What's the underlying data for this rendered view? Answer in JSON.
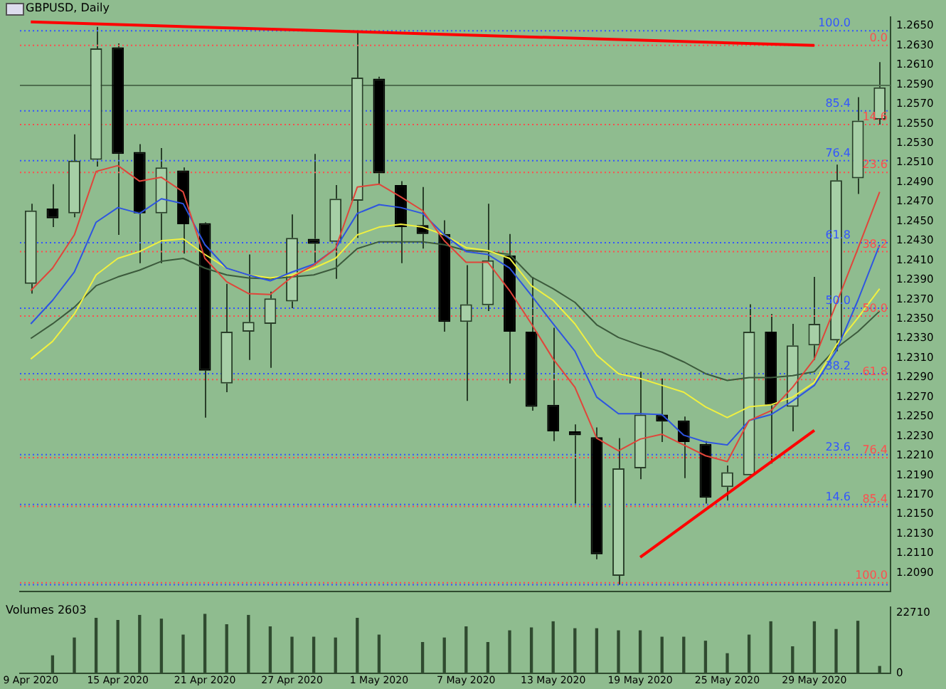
{
  "chart_data": [
    {
      "type": "candlestick",
      "title": "GBPUSD, Daily",
      "tick_labels": "y",
      "categories": [
        "9 Apr 2020",
        null,
        null,
        null,
        "15 Apr 2020",
        null,
        null,
        null,
        "21 Apr 2020",
        null,
        null,
        null,
        "27 Apr 2020",
        null,
        null,
        null,
        "1 May 2020",
        null,
        null,
        null,
        "7 May 2020",
        null,
        null,
        null,
        "13 May 2020",
        null,
        null,
        null,
        "19 May 2020",
        null,
        null,
        null,
        "25 May 2020",
        null,
        null,
        null,
        "29 May 2020",
        null,
        null,
        null
      ],
      "ohlc": [
        [
          1.2386,
          1.2468,
          1.2376,
          1.2461
        ],
        [
          1.2463,
          1.2488,
          1.2444,
          1.2453
        ],
        [
          1.2458,
          1.2539,
          1.2454,
          1.2512
        ],
        [
          1.2513,
          1.2649,
          1.2506,
          1.2627
        ],
        [
          1.2628,
          1.2632,
          1.2436,
          1.2519
        ],
        [
          1.2521,
          1.2529,
          1.2407,
          1.2458
        ],
        [
          1.2458,
          1.2525,
          1.2407,
          1.2505
        ],
        [
          1.2502,
          1.2505,
          1.2417,
          1.2447
        ],
        [
          1.2448,
          1.2449,
          1.2249,
          1.2297
        ],
        [
          1.2284,
          1.2386,
          1.2275,
          1.2337
        ],
        [
          1.2337,
          1.2416,
          1.2308,
          1.2347
        ],
        [
          1.2345,
          1.2378,
          1.23,
          1.2371
        ],
        [
          1.2368,
          1.2457,
          1.2361,
          1.2433
        ],
        [
          1.2432,
          1.2519,
          1.2405,
          1.2427
        ],
        [
          1.2429,
          1.2487,
          1.2391,
          1.2473
        ],
        [
          1.2471,
          1.2645,
          1.2433,
          1.2597
        ],
        [
          1.2596,
          1.2598,
          1.2487,
          1.2499
        ],
        [
          1.2487,
          1.2491,
          1.2407,
          1.2444
        ],
        [
          1.2446,
          1.2485,
          1.2422,
          1.2437
        ],
        [
          1.2437,
          1.2451,
          1.2337,
          1.2347
        ],
        [
          1.2347,
          1.2405,
          1.2266,
          1.2365
        ],
        [
          1.2364,
          1.2468,
          1.2358,
          1.241
        ],
        [
          1.2415,
          1.2437,
          1.2284,
          1.2337
        ],
        [
          1.2337,
          1.2393,
          1.2256,
          1.226
        ],
        [
          1.2262,
          1.2341,
          1.2225,
          1.2235
        ],
        [
          1.2235,
          1.2242,
          1.2161,
          1.2231
        ],
        [
          1.2229,
          1.2239,
          1.2104,
          1.2109
        ],
        [
          1.2087,
          1.2228,
          1.2078,
          1.2197
        ],
        [
          1.2197,
          1.2296,
          1.2186,
          1.2252
        ],
        [
          1.2252,
          1.2289,
          1.2224,
          1.2245
        ],
        [
          1.2246,
          1.225,
          1.2187,
          1.2224
        ],
        [
          1.2222,
          1.2225,
          1.2161,
          1.2167
        ],
        [
          1.2178,
          1.22,
          1.2164,
          1.2193
        ],
        [
          1.219,
          1.2365,
          1.2188,
          1.2337
        ],
        [
          1.2337,
          1.2355,
          1.2202,
          1.2262
        ],
        [
          1.226,
          1.2345,
          1.2235,
          1.2323
        ],
        [
          1.2323,
          1.2393,
          1.2308,
          1.2345
        ],
        [
          1.2328,
          1.2508,
          1.2317,
          1.2492
        ],
        [
          1.2494,
          1.2577,
          1.2478,
          1.2553
        ],
        [
          1.2554,
          1.2613,
          1.2549,
          1.2587
        ]
      ],
      "series": [
        {
          "type": "line",
          "color": "#e0453a",
          "values": [
            1.2379,
            1.2402,
            1.2436,
            1.2501,
            1.2507,
            1.2491,
            1.2495,
            1.248,
            1.2412,
            1.2388,
            1.2376,
            1.2375,
            1.2393,
            1.2405,
            1.2422,
            1.2485,
            1.2488,
            1.2475,
            1.2461,
            1.243,
            1.2408,
            1.2408,
            1.2379,
            1.2345,
            1.2309,
            1.228,
            1.2228,
            1.2215,
            1.2227,
            1.2232,
            1.2221,
            1.221,
            1.2204,
            1.2246,
            1.2256,
            1.228,
            1.2309,
            1.2365,
            1.2422,
            1.248
          ]
        },
        {
          "type": "line",
          "color": "#2e55e0",
          "values": [
            1.2345,
            1.2369,
            1.2398,
            1.2449,
            1.2464,
            1.2458,
            1.2473,
            1.2468,
            1.2426,
            1.2402,
            1.2395,
            1.2389,
            1.2398,
            1.2406,
            1.2422,
            1.2458,
            1.2467,
            1.2464,
            1.2458,
            1.2436,
            1.2419,
            1.2416,
            1.2402,
            1.2374,
            1.2345,
            1.2317,
            1.227,
            1.2253,
            1.2253,
            1.2252,
            1.2231,
            1.2224,
            1.2221,
            1.2246,
            1.2252,
            1.2266,
            1.2282,
            1.2317,
            1.2369,
            1.2426
          ]
        },
        {
          "type": "line",
          "color": "#f0f040",
          "values": [
            1.2309,
            1.2327,
            1.2355,
            1.2395,
            1.2412,
            1.2419,
            1.243,
            1.2432,
            1.2416,
            1.2402,
            1.2395,
            1.2392,
            1.2395,
            1.2402,
            1.2412,
            1.2436,
            1.2444,
            1.2447,
            1.2444,
            1.2436,
            1.2423,
            1.242,
            1.2412,
            1.2384,
            1.2369,
            1.2345,
            1.2313,
            1.2294,
            1.2289,
            1.2282,
            1.2275,
            1.226,
            1.2249,
            1.226,
            1.2262,
            1.227,
            1.2285,
            1.2323,
            1.2351,
            1.2381
          ]
        },
        {
          "type": "line",
          "color": "#3c5a3c",
          "values": [
            1.233,
            1.2345,
            1.2362,
            1.2384,
            1.2393,
            1.24,
            1.2409,
            1.2412,
            1.2402,
            1.2395,
            1.2392,
            1.2391,
            1.2393,
            1.2395,
            1.2402,
            1.2422,
            1.2429,
            1.2429,
            1.2429,
            1.2426,
            1.242,
            1.2419,
            1.2416,
            1.2393,
            1.2381,
            1.2367,
            1.2344,
            1.2331,
            1.2323,
            1.2316,
            1.2306,
            1.2294,
            1.2287,
            1.229,
            1.229,
            1.2292,
            1.2296,
            1.232,
            1.2337,
            1.2358
          ]
        },
        {
          "type": "line",
          "color": "#ff0000",
          "x": [
            "9 Apr 2020",
            "29 May 2020"
          ],
          "values": [
            1.2654,
            1.263
          ]
        },
        {
          "type": "line",
          "color": "#ff0000",
          "x": [
            "19 May 2020",
            "29 May 2020"
          ],
          "values": [
            1.2106,
            1.2236
          ]
        }
      ],
      "ylim": [
        1.2071,
        1.2659
      ],
      "yticks": [
        {
          "value": 1.265,
          "label": "1.2650"
        },
        {
          "value": 1.263,
          "label": "1.2630"
        },
        {
          "value": 1.261,
          "label": "1.2610"
        },
        {
          "value": 1.259,
          "label": "1.2590"
        },
        {
          "value": 1.257,
          "label": "1.2570"
        },
        {
          "value": 1.255,
          "label": "1.2550"
        },
        {
          "value": 1.253,
          "label": "1.2530"
        },
        {
          "value": 1.251,
          "label": "1.2510"
        },
        {
          "value": 1.249,
          "label": "1.2490"
        },
        {
          "value": 1.247,
          "label": "1.2470"
        },
        {
          "value": 1.245,
          "label": "1.2450"
        },
        {
          "value": 1.243,
          "label": "1.2430"
        },
        {
          "value": 1.241,
          "label": "1.2410"
        },
        {
          "value": 1.239,
          "label": "1.2390"
        },
        {
          "value": 1.237,
          "label": "1.2370"
        },
        {
          "value": 1.235,
          "label": "1.2350"
        },
        {
          "value": 1.233,
          "label": "1.2330"
        },
        {
          "value": 1.231,
          "label": "1.2310"
        },
        {
          "value": 1.229,
          "label": "1.2290"
        },
        {
          "value": 1.227,
          "label": "1.2270"
        },
        {
          "value": 1.225,
          "label": "1.2250"
        },
        {
          "value": 1.223,
          "label": "1.2230"
        },
        {
          "value": 1.221,
          "label": "1.2210"
        },
        {
          "value": 1.219,
          "label": "1.2190"
        },
        {
          "value": 1.217,
          "label": "1.2170"
        },
        {
          "value": 1.215,
          "label": "1.2150"
        },
        {
          "value": 1.213,
          "label": "1.2130"
        },
        {
          "value": 1.211,
          "label": "1.2110"
        },
        {
          "value": 1.209,
          "label": "1.2090"
        }
      ],
      "ref_lines": [
        {
          "axis": "y",
          "value": 1.2589,
          "color": "#4f6f4f",
          "line_style": "solid"
        },
        {
          "axis": "y",
          "value": 1.2645,
          "color": "#3355ff",
          "line_style": "dotted"
        },
        {
          "axis": "y",
          "value": 1.2563,
          "color": "#3355ff",
          "line_style": "dotted"
        },
        {
          "axis": "y",
          "value": 1.2512,
          "color": "#3355ff",
          "line_style": "dotted"
        },
        {
          "axis": "y",
          "value": 1.2428,
          "color": "#3355ff",
          "line_style": "dotted"
        },
        {
          "axis": "y",
          "value": 1.2361,
          "color": "#3355ff",
          "line_style": "dotted"
        },
        {
          "axis": "y",
          "value": 1.2294,
          "color": "#3355ff",
          "line_style": "dotted"
        },
        {
          "axis": "y",
          "value": 1.2211,
          "color": "#3355ff",
          "line_style": "dotted"
        },
        {
          "axis": "y",
          "value": 1.216,
          "color": "#3355ff",
          "line_style": "dotted"
        },
        {
          "axis": "y",
          "value": 1.2078,
          "color": "#3355ff",
          "line_style": "dotted"
        },
        {
          "axis": "y",
          "value": 1.263,
          "color": "#ff4d4d",
          "line_style": "dotted"
        },
        {
          "axis": "y",
          "value": 1.2549,
          "color": "#ff4d4d",
          "line_style": "dotted"
        },
        {
          "axis": "y",
          "value": 1.25,
          "color": "#ff4d4d",
          "line_style": "dotted"
        },
        {
          "axis": "y",
          "value": 1.2419,
          "color": "#ff4d4d",
          "line_style": "dotted"
        },
        {
          "axis": "y",
          "value": 1.2353,
          "color": "#ff4d4d",
          "line_style": "dotted"
        },
        {
          "axis": "y",
          "value": 1.2288,
          "color": "#ff4d4d",
          "line_style": "dotted"
        },
        {
          "axis": "y",
          "value": 1.2208,
          "color": "#ff4d4d",
          "line_style": "dotted"
        },
        {
          "axis": "y",
          "value": 1.2158,
          "color": "#ff4d4d",
          "line_style": "dotted"
        },
        {
          "axis": "y",
          "value": 1.208,
          "color": "#ff4d4d",
          "line_style": "dotted"
        }
      ],
      "annotations": [
        {
          "text": "100.0",
          "y": 1.2645
        },
        {
          "text": "85.4",
          "y": 1.2563
        },
        {
          "text": "76.4",
          "y": 1.2512
        },
        {
          "text": "61.8",
          "y": 1.2428
        },
        {
          "text": "50.0",
          "y": 1.2361
        },
        {
          "text": "38.2",
          "y": 1.2294
        },
        {
          "text": "23.6",
          "y": 1.2211
        },
        {
          "text": "14.6",
          "y": 1.216
        },
        {
          "text": "0.0",
          "y": 1.263
        },
        {
          "text": "14.6",
          "y": 1.2549
        },
        {
          "text": "23.6",
          "y": 1.25
        },
        {
          "text": "38.2",
          "y": 1.2419
        },
        {
          "text": "50.0",
          "y": 1.2353
        },
        {
          "text": "61.8",
          "y": 1.2288
        },
        {
          "text": "76.4",
          "y": 1.2208
        },
        {
          "text": "85.4",
          "y": 1.2158
        },
        {
          "text": "100.0",
          "y": 1.208
        }
      ]
    },
    {
      "type": "bar",
      "title": "Volumes 2603",
      "color": "#2f4a2f",
      "categories": [
        "9 Apr 2020",
        null,
        null,
        null,
        "15 Apr 2020",
        null,
        null,
        null,
        "21 Apr 2020",
        null,
        null,
        null,
        "27 Apr 2020",
        null,
        null,
        null,
        "1 May 2020",
        null,
        null,
        null,
        "7 May 2020",
        null,
        null,
        null,
        "13 May 2020",
        null,
        null,
        null,
        "19 May 2020",
        null,
        null,
        null,
        "25 May 2020",
        null,
        null,
        null,
        "29 May 2020",
        null,
        null,
        null
      ],
      "values": [
        null,
        6600,
        13300,
        20700,
        19900,
        21800,
        20400,
        14400,
        22200,
        18300,
        21800,
        17500,
        13600,
        13600,
        13300,
        20700,
        14400,
        null,
        11600,
        13300,
        17500,
        11600,
        16000,
        17100,
        19400,
        16800,
        16800,
        16000,
        16000,
        13600,
        13600,
        12100,
        7400,
        14400,
        19400,
        10000,
        19400,
        16500,
        19600,
        2603
      ],
      "ylim": [
        0,
        24900
      ],
      "yticks": [
        22710,
        0
      ]
    }
  ]
}
